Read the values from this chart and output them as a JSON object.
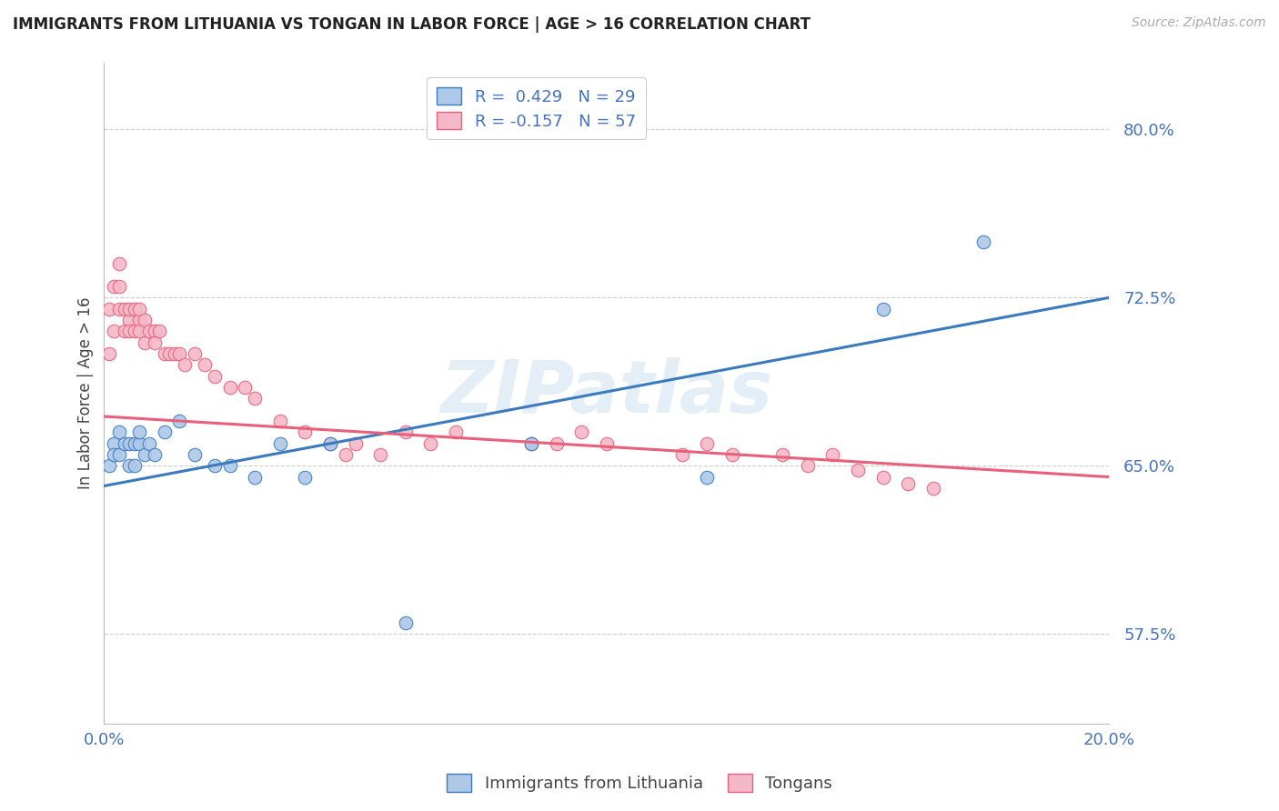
{
  "title": "IMMIGRANTS FROM LITHUANIA VS TONGAN IN LABOR FORCE | AGE > 16 CORRELATION CHART",
  "source_text": "Source: ZipAtlas.com",
  "ylabel": "In Labor Force | Age > 16",
  "xlim": [
    0.0,
    0.2
  ],
  "ylim": [
    0.535,
    0.83
  ],
  "yticks": [
    0.575,
    0.65,
    0.725,
    0.8
  ],
  "ytick_labels": [
    "57.5%",
    "65.0%",
    "72.5%",
    "80.0%"
  ],
  "xticks": [
    0.0,
    0.2
  ],
  "xtick_labels": [
    "0.0%",
    "20.0%"
  ],
  "legend_r1": "R =  0.429",
  "legend_n1": "N = 29",
  "legend_r2": "R = -0.157",
  "legend_n2": "N = 57",
  "blue_color": "#aec8e8",
  "pink_color": "#f4b8c8",
  "blue_line_color": "#3a7bbf",
  "pink_line_color": "#e8607a",
  "watermark": "ZIPatlas",
  "lithuania_x": [
    0.001,
    0.002,
    0.002,
    0.003,
    0.003,
    0.004,
    0.005,
    0.005,
    0.006,
    0.006,
    0.007,
    0.007,
    0.008,
    0.009,
    0.01,
    0.012,
    0.015,
    0.018,
    0.022,
    0.025,
    0.03,
    0.035,
    0.04,
    0.045,
    0.06,
    0.085,
    0.12,
    0.155,
    0.175
  ],
  "lithuania_y": [
    0.65,
    0.66,
    0.655,
    0.665,
    0.655,
    0.66,
    0.65,
    0.66,
    0.65,
    0.66,
    0.66,
    0.665,
    0.655,
    0.66,
    0.655,
    0.665,
    0.67,
    0.655,
    0.65,
    0.65,
    0.645,
    0.66,
    0.645,
    0.66,
    0.58,
    0.66,
    0.645,
    0.72,
    0.75
  ],
  "tongan_x": [
    0.001,
    0.001,
    0.002,
    0.002,
    0.003,
    0.003,
    0.003,
    0.004,
    0.004,
    0.005,
    0.005,
    0.005,
    0.006,
    0.006,
    0.007,
    0.007,
    0.007,
    0.008,
    0.008,
    0.009,
    0.01,
    0.01,
    0.011,
    0.012,
    0.013,
    0.014,
    0.015,
    0.016,
    0.018,
    0.02,
    0.022,
    0.025,
    0.028,
    0.03,
    0.035,
    0.04,
    0.045,
    0.048,
    0.05,
    0.055,
    0.06,
    0.065,
    0.07,
    0.085,
    0.09,
    0.095,
    0.1,
    0.115,
    0.12,
    0.125,
    0.135,
    0.14,
    0.145,
    0.15,
    0.155,
    0.16,
    0.165
  ],
  "tongan_y": [
    0.72,
    0.7,
    0.73,
    0.71,
    0.73,
    0.72,
    0.74,
    0.71,
    0.72,
    0.715,
    0.72,
    0.71,
    0.72,
    0.71,
    0.715,
    0.72,
    0.71,
    0.715,
    0.705,
    0.71,
    0.71,
    0.705,
    0.71,
    0.7,
    0.7,
    0.7,
    0.7,
    0.695,
    0.7,
    0.695,
    0.69,
    0.685,
    0.685,
    0.68,
    0.67,
    0.665,
    0.66,
    0.655,
    0.66,
    0.655,
    0.665,
    0.66,
    0.665,
    0.66,
    0.66,
    0.665,
    0.66,
    0.655,
    0.66,
    0.655,
    0.655,
    0.65,
    0.655,
    0.648,
    0.645,
    0.642,
    0.64
  ]
}
